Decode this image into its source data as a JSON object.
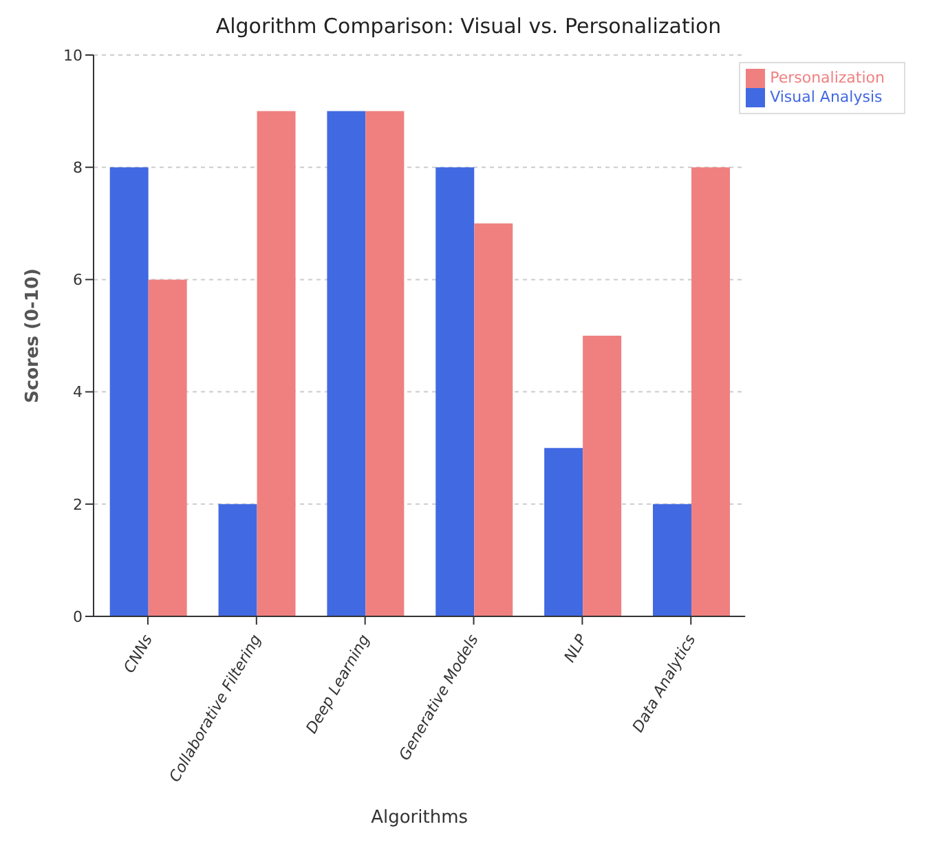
{
  "chart_data": {
    "type": "bar",
    "title": "Algorithm Comparison: Visual vs. Personalization",
    "xlabel": "Algorithms",
    "ylabel": "Scores (0-10)",
    "categories": [
      "CNNs",
      "Collaborative Filtering",
      "Deep Learning",
      "Generative Models",
      "NLP",
      "Data Analytics"
    ],
    "series": [
      {
        "name": "Visual Analysis",
        "color": "#4169e1",
        "values": [
          8,
          2,
          9,
          8,
          3,
          2
        ]
      },
      {
        "name": "Personalization",
        "color": "#f08080",
        "values": [
          6,
          9,
          9,
          7,
          5,
          8
        ]
      }
    ],
    "ylim": [
      0,
      10
    ],
    "yticks": [
      0,
      2,
      4,
      6,
      8,
      10
    ],
    "grid": "y",
    "legend": "top right"
  }
}
